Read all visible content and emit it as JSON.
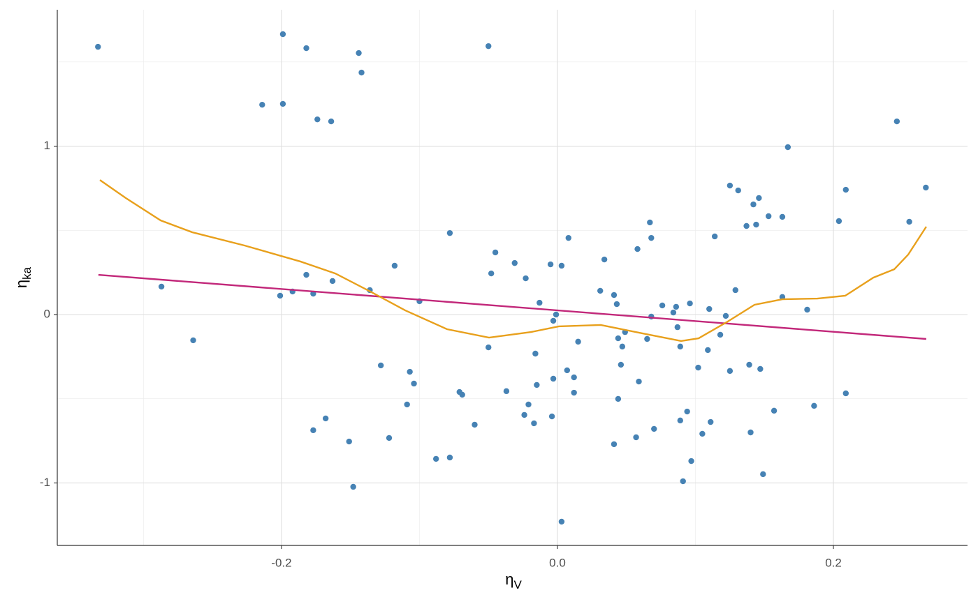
{
  "chart_data": {
    "type": "scatter",
    "x_label": {
      "text": "η",
      "sub": "V"
    },
    "y_label": {
      "text": "η",
      "sub": "ka"
    },
    "xlim": [
      -0.3625,
      0.2972
    ],
    "ylim": [
      -1.371,
      1.81
    ],
    "xticks": [
      -0.2,
      {
        "value": 0,
        "label": "0.0"
      },
      0.2
    ],
    "yticks": [
      -1,
      0,
      1
    ],
    "x_minor_ticks": [
      -0.3,
      -0.1,
      0.1
    ],
    "y_minor_ticks": [
      -0.5,
      0.5,
      1.5
    ],
    "grid": true,
    "series": [
      {
        "type": "scatter",
        "color": "#4682b4",
        "x": [
          -0.333,
          -0.287,
          -0.264,
          -0.214,
          -0.199,
          -0.199,
          -0.201,
          -0.192,
          -0.182,
          -0.182,
          -0.177,
          -0.177,
          -0.174,
          -0.168,
          -0.164,
          -0.163,
          -0.151,
          -0.148,
          -0.144,
          -0.142,
          -0.136,
          -0.128,
          -0.122,
          -0.118,
          -0.109,
          -0.107,
          -0.104,
          -0.1,
          -0.088,
          -0.078,
          -0.078,
          -0.071,
          -0.069,
          -0.06,
          -0.05,
          -0.05,
          -0.048,
          -0.045,
          -0.037,
          -0.031,
          -0.024,
          -0.023,
          -0.021,
          -0.017,
          -0.016,
          -0.015,
          -0.013,
          -0.005,
          -0.004,
          -0.003,
          -0.003,
          -0.001,
          0.003,
          0.003,
          0.007,
          0.008,
          0.012,
          0.012,
          0.015,
          0.031,
          0.034,
          0.041,
          0.041,
          0.043,
          0.044,
          0.044,
          0.046,
          0.047,
          0.049,
          0.057,
          0.058,
          0.059,
          0.065,
          0.067,
          0.068,
          0.068,
          0.07,
          0.076,
          0.084,
          0.086,
          0.087,
          0.089,
          0.089,
          0.091,
          0.094,
          0.096,
          0.097,
          0.102,
          0.105,
          0.109,
          0.11,
          0.111,
          0.114,
          0.118,
          0.122,
          0.125,
          0.125,
          0.129,
          0.131,
          0.137,
          0.139,
          0.14,
          0.142,
          0.144,
          0.146,
          0.147,
          0.149,
          0.153,
          0.157,
          0.163,
          0.163,
          0.167,
          0.181,
          0.186,
          0.204,
          0.209,
          0.209,
          0.246,
          0.255,
          0.267
        ],
        "values": [
          1.59,
          0.166,
          -0.153,
          1.246,
          1.665,
          1.251,
          0.112,
          0.137,
          1.582,
          0.236,
          0.124,
          -0.687,
          1.159,
          -0.617,
          1.147,
          0.199,
          -0.754,
          -1.023,
          1.553,
          1.437,
          0.145,
          -0.302,
          -0.733,
          0.29,
          -0.534,
          -0.34,
          -0.41,
          0.079,
          -0.857,
          0.484,
          -0.849,
          -0.46,
          -0.476,
          -0.654,
          1.594,
          -0.195,
          0.244,
          0.369,
          -0.455,
          0.306,
          -0.596,
          0.215,
          -0.534,
          -0.646,
          -0.232,
          -0.418,
          0.07,
          0.298,
          -0.605,
          -0.037,
          -0.381,
          0.0,
          0.29,
          -1.23,
          -0.331,
          0.455,
          -0.464,
          -0.373,
          -0.161,
          0.141,
          0.327,
          -0.77,
          0.116,
          0.062,
          -0.501,
          -0.141,
          -0.298,
          -0.19,
          -0.104,
          -0.729,
          0.389,
          -0.398,
          -0.145,
          0.547,
          0.455,
          -0.012,
          -0.679,
          0.054,
          0.012,
          0.046,
          -0.075,
          -0.629,
          -0.19,
          -0.99,
          -0.576,
          0.066,
          -0.87,
          -0.315,
          -0.708,
          -0.211,
          0.033,
          -0.638,
          0.464,
          -0.12,
          -0.008,
          -0.335,
          0.766,
          0.145,
          0.737,
          0.526,
          -0.298,
          -0.7,
          0.654,
          0.534,
          0.692,
          -0.323,
          -0.948,
          0.584,
          -0.571,
          0.58,
          0.104,
          0.994,
          0.029,
          -0.542,
          0.555,
          0.741,
          -0.468,
          1.147,
          0.551,
          0.754
        ]
      },
      {
        "type": "line",
        "color": "#c2287a",
        "x": [
          -0.3327,
          0.2673
        ],
        "values": [
          0.236,
          -0.145
        ]
      },
      {
        "type": "line",
        "color": "#e8a01c",
        "x": [
          -0.3316,
          -0.3129,
          -0.2876,
          -0.2648,
          -0.2268,
          -0.1863,
          -0.161,
          -0.1357,
          -0.1104,
          -0.08,
          -0.0496,
          -0.0192,
          0.001,
          0.0314,
          0.0618,
          0.0896,
          0.1023,
          0.1225,
          0.1428,
          0.163,
          0.1884,
          0.2086,
          0.2289,
          0.2441,
          0.2542,
          0.2673
        ],
        "values": [
          0.799,
          0.692,
          0.559,
          0.489,
          0.41,
          0.315,
          0.244,
          0.137,
          0.025,
          -0.087,
          -0.137,
          -0.104,
          -0.07,
          -0.062,
          -0.112,
          -0.157,
          -0.141,
          -0.046,
          0.058,
          0.091,
          0.095,
          0.112,
          0.219,
          0.269,
          0.356,
          0.522
        ]
      }
    ]
  }
}
